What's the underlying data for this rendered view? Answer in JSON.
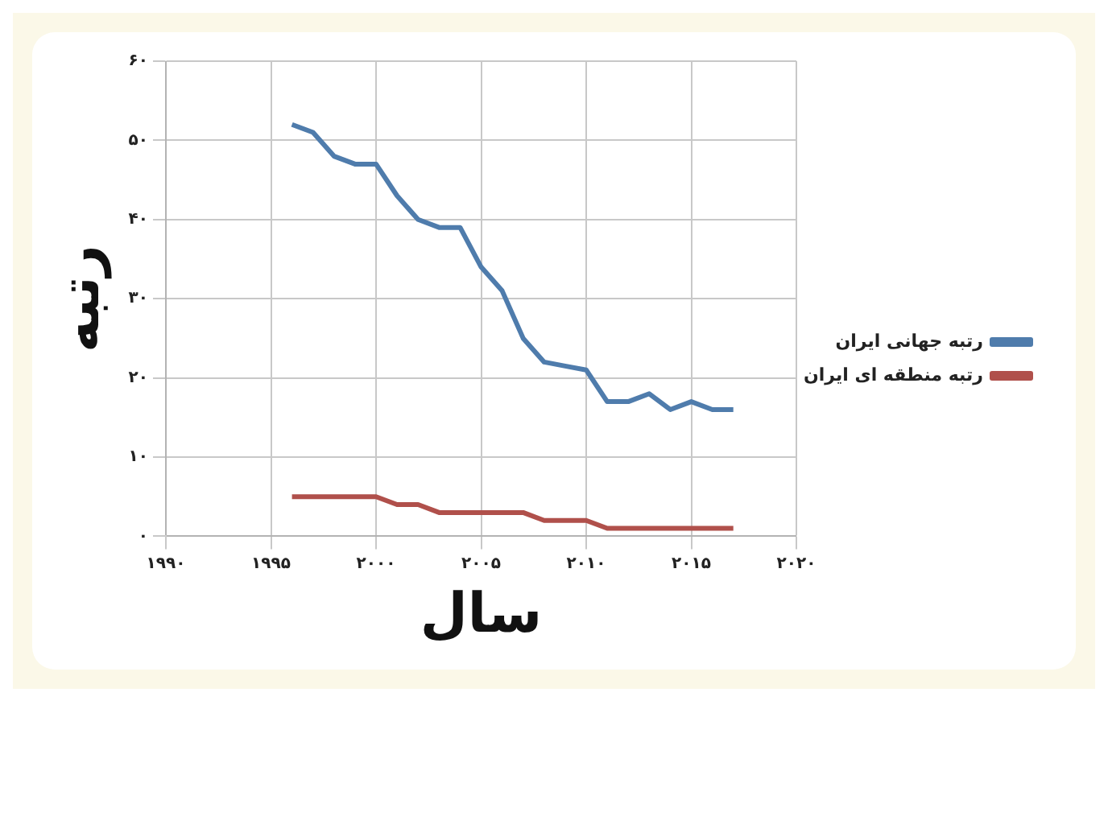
{
  "chart_data": {
    "type": "line",
    "xlabel": "سال",
    "ylabel": "رتبه",
    "x": [
      1996,
      1997,
      1998,
      1999,
      2000,
      2001,
      2002,
      2003,
      2004,
      2005,
      2006,
      2007,
      2008,
      2009,
      2010,
      2011,
      2012,
      2013,
      2014,
      2015,
      2016,
      2017
    ],
    "series": [
      {
        "name": "رتبه جهانی ایران",
        "color": "#4f7cac",
        "values": [
          52,
          51,
          48,
          47,
          47,
          43,
          40,
          39,
          39,
          34,
          31,
          25,
          22,
          21.5,
          21,
          17,
          17,
          18,
          16,
          17,
          16,
          16
        ]
      },
      {
        "name": "رتبه منطقه ای ایران",
        "color": "#b0504b",
        "values": [
          5,
          5,
          5,
          5,
          5,
          4,
          4,
          3,
          3,
          3,
          3,
          3,
          2,
          2,
          2,
          1,
          1,
          1,
          1,
          1,
          1,
          1
        ]
      }
    ],
    "xlim": [
      1990,
      2020
    ],
    "xticks": [
      {
        "value": 1990,
        "label": "۱۹۹۰"
      },
      {
        "value": 1995,
        "label": "۱۹۹۵"
      },
      {
        "value": 2000,
        "label": "۲۰۰۰"
      },
      {
        "value": 2005,
        "label": "۲۰۰۵"
      },
      {
        "value": 2010,
        "label": "۲۰۱۰"
      },
      {
        "value": 2015,
        "label": "۲۰۱۵"
      },
      {
        "value": 2020,
        "label": "۲۰۲۰"
      }
    ],
    "ylim": [
      0,
      60
    ],
    "yticks": [
      {
        "value": 0,
        "label": "۰"
      },
      {
        "value": 10,
        "label": "۱۰"
      },
      {
        "value": 20,
        "label": "۲۰"
      },
      {
        "value": 30,
        "label": "۳۰"
      },
      {
        "value": 40,
        "label": "۴۰"
      },
      {
        "value": 50,
        "label": "۵۰"
      },
      {
        "value": 60,
        "label": "۶۰"
      }
    ],
    "grid": true,
    "legend": "right",
    "marker": "none",
    "line_style": "solid"
  }
}
